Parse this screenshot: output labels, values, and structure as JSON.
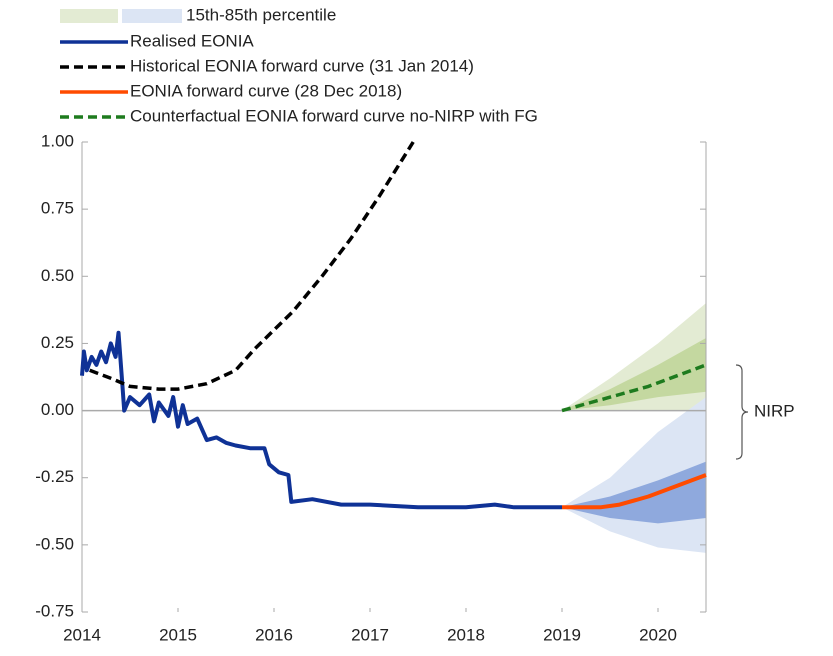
{
  "chart_data": {
    "type": "line",
    "band_legend": "15th-85th percentile",
    "annotation": "NIRP",
    "xlim": [
      2014,
      2020.5
    ],
    "xticks": [
      2014,
      2015,
      2016,
      2017,
      2018,
      2019,
      2020
    ],
    "ylim": [
      -0.75,
      1.0
    ],
    "yticks": [
      -0.75,
      {
        "value": -0.5,
        "label": "-0.50"
      },
      -0.25,
      {
        "value": 0,
        "label": "0.00"
      },
      0.25,
      {
        "value": 0.5,
        "label": "0.50"
      },
      0.75,
      {
        "value": 1,
        "label": "1.00"
      }
    ],
    "bands": [
      {
        "color": "#e3ebd3",
        "x": [
          2019,
          2019.5,
          2020,
          2020.5
        ],
        "lower": [
          0,
          0,
          0,
          0
        ],
        "upper": [
          0,
          0.12,
          0.25,
          0.4
        ]
      },
      {
        "color": "#c4d8a0",
        "x": [
          2019,
          2019.5,
          2020,
          2020.5
        ],
        "lower": [
          0,
          0.02,
          0.05,
          0.07
        ],
        "upper": [
          0,
          0.08,
          0.17,
          0.27
        ]
      },
      {
        "color": "#dce5f4",
        "x": [
          2019,
          2019.5,
          2020,
          2020.5
        ],
        "lower": [
          -0.36,
          -0.45,
          -0.51,
          -0.53
        ],
        "upper": [
          -0.36,
          -0.25,
          -0.08,
          0.05
        ]
      },
      {
        "color": "#8fa9dd",
        "x": [
          2019,
          2019.5,
          2020,
          2020.5
        ],
        "lower": [
          -0.36,
          -0.4,
          -0.42,
          -0.4
        ],
        "upper": [
          -0.36,
          -0.32,
          -0.26,
          -0.19
        ]
      }
    ],
    "series": [
      {
        "name": "Realised EONIA",
        "color": "#0f3296",
        "dash": false,
        "x": [
          2014.0,
          2014.02,
          2014.05,
          2014.1,
          2014.15,
          2014.2,
          2014.25,
          2014.3,
          2014.35,
          2014.38,
          2014.42,
          2014.44,
          2014.5,
          2014.6,
          2014.7,
          2014.75,
          2014.8,
          2014.9,
          2014.95,
          2015.0,
          2015.05,
          2015.1,
          2015.2,
          2015.3,
          2015.4,
          2015.5,
          2015.6,
          2015.75,
          2015.9,
          2015.95,
          2016.05,
          2016.15,
          2016.18,
          2016.4,
          2016.7,
          2017.0,
          2017.5,
          2018.0,
          2018.3,
          2018.5,
          2018.8,
          2019.0
        ],
        "values": [
          0.13,
          0.22,
          0.15,
          0.2,
          0.17,
          0.22,
          0.18,
          0.25,
          0.2,
          0.29,
          0.1,
          0.0,
          0.05,
          0.02,
          0.06,
          -0.04,
          0.03,
          -0.02,
          0.05,
          -0.06,
          0.02,
          -0.05,
          -0.03,
          -0.11,
          -0.1,
          -0.12,
          -0.13,
          -0.14,
          -0.14,
          -0.2,
          -0.23,
          -0.24,
          -0.34,
          -0.33,
          -0.35,
          -0.35,
          -0.36,
          -0.36,
          -0.35,
          -0.36,
          -0.36,
          -0.36
        ]
      },
      {
        "name": "Historical EONIA forward curve (31 Jan 2014)",
        "color": "#000000",
        "dash": true,
        "x": [
          2014.08,
          2014.3,
          2014.5,
          2014.8,
          2015.0,
          2015.3,
          2015.6,
          2015.8,
          2016.2,
          2016.5,
          2016.8,
          2017.1,
          2017.45
        ],
        "values": [
          0.15,
          0.12,
          0.09,
          0.08,
          0.08,
          0.1,
          0.15,
          0.23,
          0.37,
          0.5,
          0.64,
          0.8,
          1.0
        ]
      },
      {
        "name": "EONIA forward curve (28 Dec 2018)",
        "color": "#ff4b00",
        "dash": false,
        "x": [
          2019.0,
          2019.2,
          2019.4,
          2019.6,
          2019.9,
          2020.2,
          2020.5
        ],
        "values": [
          -0.36,
          -0.36,
          -0.36,
          -0.35,
          -0.32,
          -0.28,
          -0.24
        ]
      },
      {
        "name": "Counterfactual EONIA forward curve no-NIRP with FG",
        "color": "#1e7b1e",
        "dash": true,
        "x": [
          2019.0,
          2019.3,
          2019.6,
          2019.9,
          2020.2,
          2020.5
        ],
        "values": [
          0,
          0.03,
          0.06,
          0.09,
          0.13,
          0.17
        ]
      }
    ]
  }
}
